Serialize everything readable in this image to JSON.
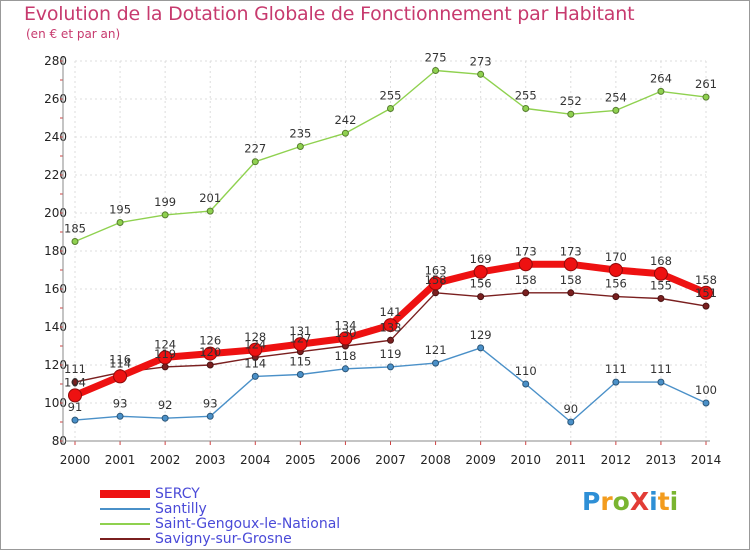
{
  "title": "Evolution de la Dotation Globale de Fonctionnement par Habitant",
  "subtitle": "(en € et par an)",
  "brand": {
    "text": "ProXiti",
    "letters": [
      {
        "ch": "P",
        "color": "#2e8fd6"
      },
      {
        "ch": "r",
        "color": "#f39c1e"
      },
      {
        "ch": "o",
        "color": "#7ab530"
      },
      {
        "ch": "X",
        "color": "#e23c36"
      },
      {
        "ch": "i",
        "color": "#2e8fd6"
      },
      {
        "ch": "t",
        "color": "#f39c1e"
      },
      {
        "ch": "i",
        "color": "#7ab530"
      }
    ]
  },
  "chart_data": {
    "type": "line",
    "title": "Evolution de la Dotation Globale de Fonctionnement par Habitant",
    "subtitle": "(en € et par an)",
    "x": [
      "2000",
      "2001",
      "2002",
      "2003",
      "2004",
      "2005",
      "2006",
      "2007",
      "2008",
      "2009",
      "2010",
      "2011",
      "2012",
      "2013",
      "2014"
    ],
    "ylim": [
      80,
      280
    ],
    "yticks": [
      "80",
      "100",
      "120",
      "140",
      "160",
      "180",
      "200",
      "220",
      "240",
      "260",
      "280"
    ],
    "grid": true,
    "legend_position": "bottom-left",
    "series": [
      {
        "name": "SERCY",
        "color": "#ee1111",
        "emphasis": true,
        "values": [
          104,
          114,
          124,
          126,
          128,
          131,
          134,
          141,
          163,
          169,
          173,
          173,
          170,
          168,
          158
        ],
        "labels": [
          "104",
          "114",
          "124",
          "126",
          "128",
          "131",
          "134",
          "141",
          "163",
          "169",
          "173",
          "173",
          "170",
          "168",
          "158"
        ]
      },
      {
        "name": "Santilly",
        "color": "#4a90c8",
        "emphasis": false,
        "values": [
          91,
          93,
          92,
          93,
          114,
          115,
          118,
          119,
          121,
          129,
          110,
          90,
          111,
          111,
          100
        ],
        "labels": [
          "91",
          "93",
          "92",
          "93",
          "114",
          "115",
          "118",
          "119",
          "121",
          "129",
          "110",
          "90",
          "111",
          "111",
          "100"
        ]
      },
      {
        "name": "Saint-Gengoux-le-National",
        "color": "#8fd14f",
        "emphasis": false,
        "values": [
          185,
          195,
          199,
          201,
          227,
          235,
          242,
          255,
          275,
          273,
          255,
          252,
          254,
          264,
          261
        ],
        "labels": [
          "185",
          "195",
          "199",
          "201",
          "227",
          "235",
          "242",
          "255",
          "275",
          "273",
          "255",
          "252",
          "254",
          "264",
          "261"
        ]
      },
      {
        "name": "Savigny-sur-Grosne",
        "color": "#7a1f1f",
        "emphasis": false,
        "values": [
          111,
          116,
          119,
          120,
          124,
          127,
          130,
          133,
          158,
          156,
          158,
          158,
          156,
          155,
          151
        ],
        "labels": [
          "111",
          "116",
          "119",
          "120",
          "124",
          "127",
          "130",
          "133",
          "158",
          "156",
          "158",
          "158",
          "156",
          "155",
          "151"
        ]
      }
    ]
  }
}
